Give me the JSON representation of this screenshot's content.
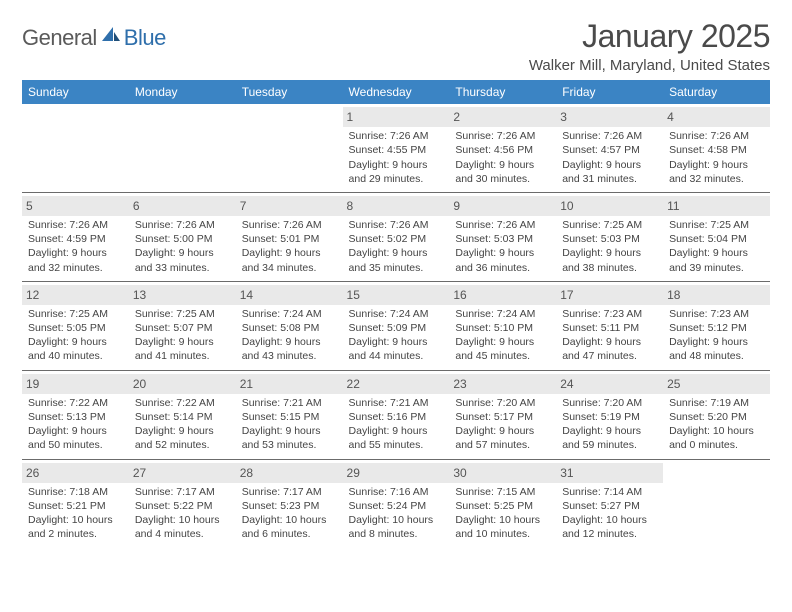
{
  "logo": {
    "general": "General",
    "blue": "Blue"
  },
  "title": "January 2025",
  "location": "Walker Mill, Maryland, United States",
  "colors": {
    "header_bg": "#3b84c4",
    "header_fg": "#ffffff",
    "daynum_bg": "#e9e9e9",
    "row_border": "#6b6b6b",
    "text": "#444444",
    "logo_gray": "#5a5a5a",
    "logo_blue": "#2f6fab"
  },
  "day_headers": [
    "Sunday",
    "Monday",
    "Tuesday",
    "Wednesday",
    "Thursday",
    "Friday",
    "Saturday"
  ],
  "weeks": [
    [
      null,
      null,
      null,
      {
        "n": "1",
        "sr": "7:26 AM",
        "ss": "4:55 PM",
        "dl": "9 hours and 29 minutes."
      },
      {
        "n": "2",
        "sr": "7:26 AM",
        "ss": "4:56 PM",
        "dl": "9 hours and 30 minutes."
      },
      {
        "n": "3",
        "sr": "7:26 AM",
        "ss": "4:57 PM",
        "dl": "9 hours and 31 minutes."
      },
      {
        "n": "4",
        "sr": "7:26 AM",
        "ss": "4:58 PM",
        "dl": "9 hours and 32 minutes."
      }
    ],
    [
      {
        "n": "5",
        "sr": "7:26 AM",
        "ss": "4:59 PM",
        "dl": "9 hours and 32 minutes."
      },
      {
        "n": "6",
        "sr": "7:26 AM",
        "ss": "5:00 PM",
        "dl": "9 hours and 33 minutes."
      },
      {
        "n": "7",
        "sr": "7:26 AM",
        "ss": "5:01 PM",
        "dl": "9 hours and 34 minutes."
      },
      {
        "n": "8",
        "sr": "7:26 AM",
        "ss": "5:02 PM",
        "dl": "9 hours and 35 minutes."
      },
      {
        "n": "9",
        "sr": "7:26 AM",
        "ss": "5:03 PM",
        "dl": "9 hours and 36 minutes."
      },
      {
        "n": "10",
        "sr": "7:25 AM",
        "ss": "5:03 PM",
        "dl": "9 hours and 38 minutes."
      },
      {
        "n": "11",
        "sr": "7:25 AM",
        "ss": "5:04 PM",
        "dl": "9 hours and 39 minutes."
      }
    ],
    [
      {
        "n": "12",
        "sr": "7:25 AM",
        "ss": "5:05 PM",
        "dl": "9 hours and 40 minutes."
      },
      {
        "n": "13",
        "sr": "7:25 AM",
        "ss": "5:07 PM",
        "dl": "9 hours and 41 minutes."
      },
      {
        "n": "14",
        "sr": "7:24 AM",
        "ss": "5:08 PM",
        "dl": "9 hours and 43 minutes."
      },
      {
        "n": "15",
        "sr": "7:24 AM",
        "ss": "5:09 PM",
        "dl": "9 hours and 44 minutes."
      },
      {
        "n": "16",
        "sr": "7:24 AM",
        "ss": "5:10 PM",
        "dl": "9 hours and 45 minutes."
      },
      {
        "n": "17",
        "sr": "7:23 AM",
        "ss": "5:11 PM",
        "dl": "9 hours and 47 minutes."
      },
      {
        "n": "18",
        "sr": "7:23 AM",
        "ss": "5:12 PM",
        "dl": "9 hours and 48 minutes."
      }
    ],
    [
      {
        "n": "19",
        "sr": "7:22 AM",
        "ss": "5:13 PM",
        "dl": "9 hours and 50 minutes."
      },
      {
        "n": "20",
        "sr": "7:22 AM",
        "ss": "5:14 PM",
        "dl": "9 hours and 52 minutes."
      },
      {
        "n": "21",
        "sr": "7:21 AM",
        "ss": "5:15 PM",
        "dl": "9 hours and 53 minutes."
      },
      {
        "n": "22",
        "sr": "7:21 AM",
        "ss": "5:16 PM",
        "dl": "9 hours and 55 minutes."
      },
      {
        "n": "23",
        "sr": "7:20 AM",
        "ss": "5:17 PM",
        "dl": "9 hours and 57 minutes."
      },
      {
        "n": "24",
        "sr": "7:20 AM",
        "ss": "5:19 PM",
        "dl": "9 hours and 59 minutes."
      },
      {
        "n": "25",
        "sr": "7:19 AM",
        "ss": "5:20 PM",
        "dl": "10 hours and 0 minutes."
      }
    ],
    [
      {
        "n": "26",
        "sr": "7:18 AM",
        "ss": "5:21 PM",
        "dl": "10 hours and 2 minutes."
      },
      {
        "n": "27",
        "sr": "7:17 AM",
        "ss": "5:22 PM",
        "dl": "10 hours and 4 minutes."
      },
      {
        "n": "28",
        "sr": "7:17 AM",
        "ss": "5:23 PM",
        "dl": "10 hours and 6 minutes."
      },
      {
        "n": "29",
        "sr": "7:16 AM",
        "ss": "5:24 PM",
        "dl": "10 hours and 8 minutes."
      },
      {
        "n": "30",
        "sr": "7:15 AM",
        "ss": "5:25 PM",
        "dl": "10 hours and 10 minutes."
      },
      {
        "n": "31",
        "sr": "7:14 AM",
        "ss": "5:27 PM",
        "dl": "10 hours and 12 minutes."
      },
      null
    ]
  ],
  "labels": {
    "sunrise": "Sunrise:",
    "sunset": "Sunset:",
    "daylight": "Daylight:"
  }
}
